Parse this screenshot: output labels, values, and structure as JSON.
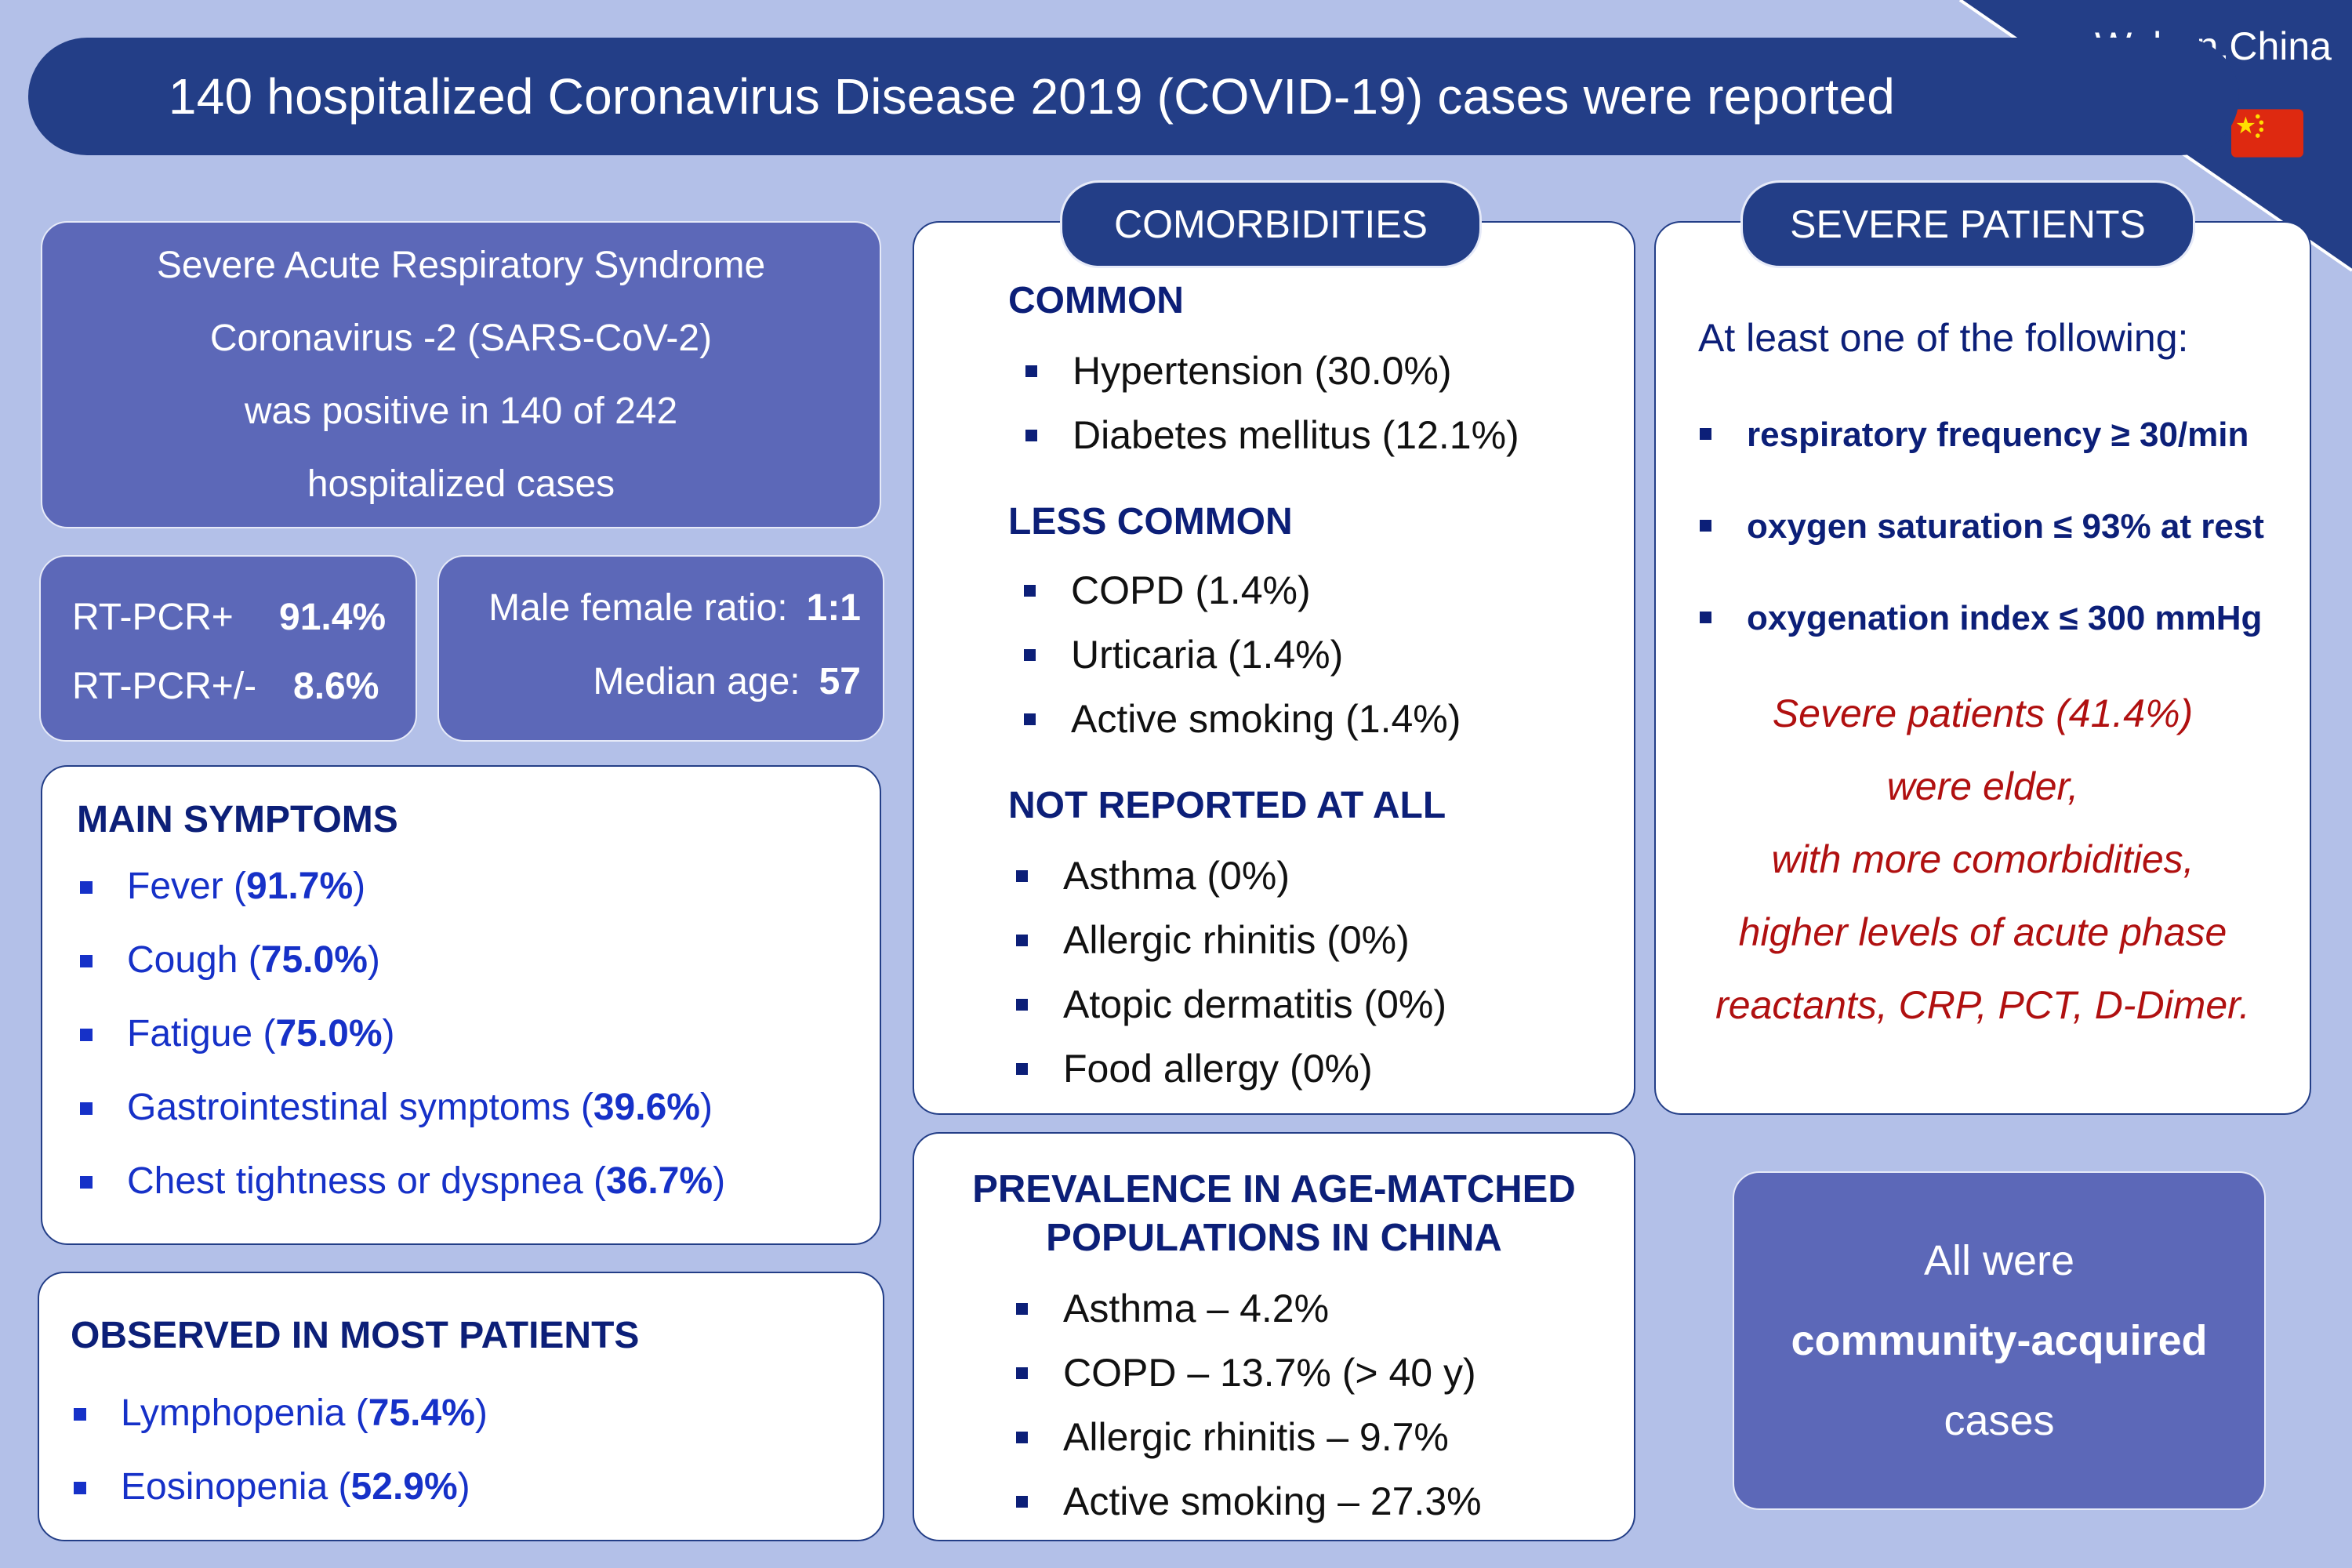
{
  "header": {
    "title": "140 hospitalized Coronavirus Disease 2019 (COVID-19) cases were reported",
    "location": "Wuhan,China",
    "flag_icon": "china-flag-icon"
  },
  "sars_panel": {
    "lines": [
      "Severe Acute Respiratory Syndrome",
      "Coronavirus -2 (SARS-CoV-2)",
      "was positive in 140 of 242",
      "hospitalized cases"
    ]
  },
  "pcr_panel": {
    "rows": [
      {
        "label": "RT-PCR+",
        "value": "91.4%"
      },
      {
        "label": "RT-PCR+/-",
        "value": "8.6%"
      }
    ]
  },
  "demographics_panel": {
    "rows": [
      {
        "label": "Male female ratio:",
        "value": "1:1"
      },
      {
        "label": "Median age:",
        "value": "57"
      }
    ]
  },
  "main_symptoms": {
    "heading": "MAIN SYMPTOMS",
    "items": [
      {
        "name": "Fever",
        "pct": "91.7%"
      },
      {
        "name": "Cough",
        "pct": "75.0%"
      },
      {
        "name": "Fatigue",
        "pct": "75.0%"
      },
      {
        "name": "Gastrointestinal symptoms",
        "pct": "39.6%"
      },
      {
        "name": "Chest tightness or dyspnea",
        "pct": "36.7%"
      }
    ]
  },
  "observed": {
    "heading": "OBSERVED IN MOST PATIENTS",
    "items": [
      {
        "name": "Lymphopenia",
        "pct": "75.4%"
      },
      {
        "name": "Eosinopenia",
        "pct": "52.9%"
      }
    ]
  },
  "comorbidities": {
    "pill": "COMORBIDITIES",
    "common_heading": "COMMON",
    "common": [
      "Hypertension (30.0%)",
      "Diabetes mellitus (12.1%)"
    ],
    "less_common_heading": "LESS COMMON",
    "less_common": [
      "COPD (1.4%)",
      "Urticaria (1.4%)",
      "Active smoking (1.4%)"
    ],
    "not_reported_heading": "NOT REPORTED  AT ALL",
    "not_reported": [
      "Asthma (0%)",
      "Allergic rhinitis (0%)",
      "Atopic dermatitis (0%)",
      "Food allergy (0%)"
    ]
  },
  "prevalence": {
    "title_line1": "PREVALENCE IN AGE-MATCHED",
    "title_line2": "POPULATIONS IN CHINA",
    "items": [
      "Asthma – 4.2%",
      "COPD – 13.7% (> 40 y)",
      "Allergic rhinitis – 9.7%",
      "Active smoking – 27.3%"
    ]
  },
  "severe": {
    "pill": "SEVERE PATIENTS",
    "intro": "At least one of the following:",
    "criteria": [
      "respiratory frequency ≥ 30/min",
      "oxygen saturation ≤ 93% at rest",
      "oxygenation index ≤ 300 mmHg"
    ],
    "note_lines": [
      "Severe patients (41.4%)",
      "were elder,",
      "with more comorbidities,",
      "higher levels of acute phase",
      "reactants, CRP, PCT, D-Dimer."
    ]
  },
  "community": {
    "line1": "All were",
    "line2": "community-acquired",
    "line3": "cases"
  },
  "colors": {
    "background": "#b3c0e8",
    "navy": "#233e87",
    "panel_blue": "#5c68b8",
    "symptom_blue": "#1631c8",
    "note_red": "#b01010"
  }
}
